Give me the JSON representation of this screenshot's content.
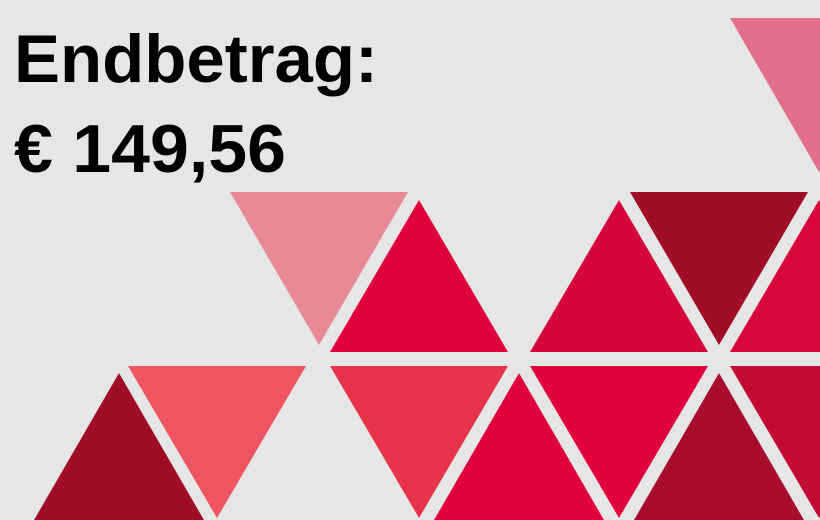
{
  "header": {
    "label": "Endbetrag:",
    "amount": "€ 149,56"
  }
}
